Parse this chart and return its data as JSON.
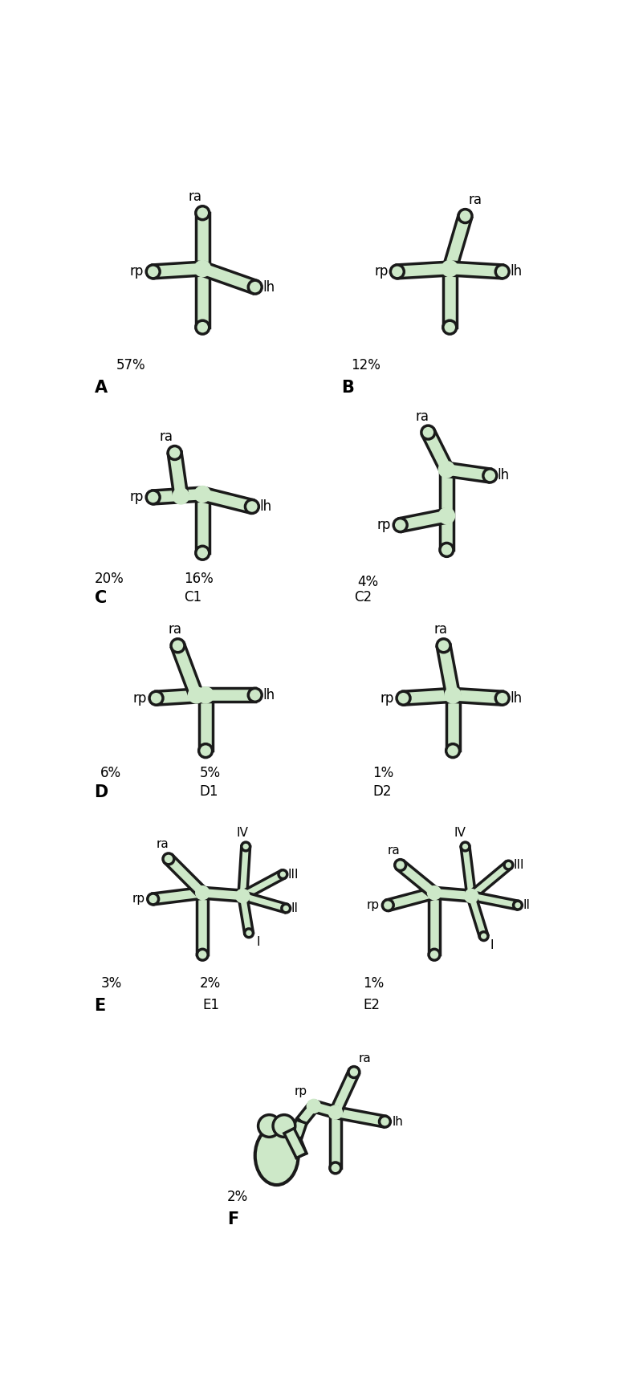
{
  "fill_color": "#cde8c8",
  "stroke_color": "#1a1a1a",
  "bg_color": "#ffffff",
  "lw": 2.5,
  "panels": {
    "A": {
      "pct_left": "57%",
      "letter": "A"
    },
    "B": {
      "pct_left": "12%",
      "letter": "B"
    },
    "C": {
      "pct_left": "20%",
      "pct_right": "16%",
      "sub": "C1",
      "letter": "C"
    },
    "C2": {
      "pct_right": "4%",
      "sub": "C2"
    },
    "D": {
      "pct_left": "6%",
      "pct_right": "5%",
      "sub": "D1",
      "letter": "D"
    },
    "D2": {
      "pct_right": "1%",
      "sub": "D2"
    },
    "E1": {
      "pct_left": "3%",
      "pct_right": "2%",
      "sub": "E1",
      "letter": "E"
    },
    "E2": {
      "pct_right": "1%",
      "sub": "E2"
    },
    "F": {
      "pct_left": "2%",
      "letter": "F"
    }
  }
}
